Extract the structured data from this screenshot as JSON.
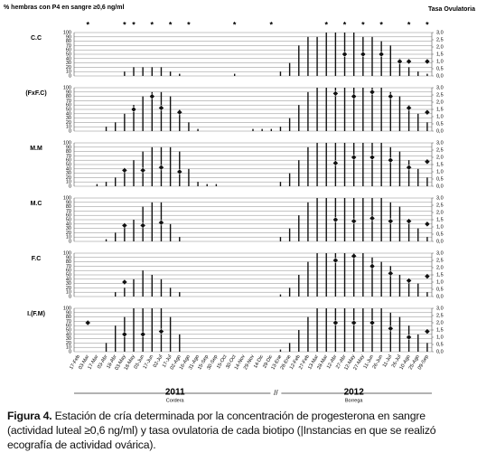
{
  "y_axis_label": "% hembras con P4 en sangre ≥0,6 ng/ml",
  "y2_axis_label": "Tasa Ovulatoria",
  "categories": [
    "17-Feb",
    "03-Mar",
    "17-Mar",
    "03-Abr",
    "18-Abr",
    "03-May",
    "18-May",
    "03-Jun",
    "17-Jun",
    "02-Jul",
    "17-Jul",
    "02-Ago",
    "16-Ago",
    "31-Ago",
    "15-Sep",
    "30-Sep",
    "15-Oct",
    "30-Oct",
    "14-Nov",
    "29-Nov",
    "14-Dic",
    "29-Dic",
    "13-Ene",
    "28-Ene",
    "12-Feb",
    "27-Feb",
    "13-Mar",
    "28-Mar",
    "12-Abr",
    "27-Abr",
    "12-May",
    "27-May",
    "11-Jun",
    "26-Jun",
    "11-Jul",
    "26-Jul",
    "10-Ago",
    "25-Ago",
    "09-Sep"
  ],
  "ylim": [
    0,
    100
  ],
  "yticks": [
    0,
    10,
    20,
    30,
    40,
    50,
    60,
    70,
    80,
    90,
    100
  ],
  "y2lim": [
    0,
    3
  ],
  "y2ticks": [
    {
      "value": 0,
      "label": "0,0"
    },
    {
      "value": 0.5,
      "label": "0,5"
    },
    {
      "value": 1,
      "label": "1,0"
    },
    {
      "value": 1.5,
      "label": "1,5"
    },
    {
      "value": 2,
      "label": "2,0"
    },
    {
      "value": 2.5,
      "label": "2,5"
    },
    {
      "value": 3,
      "label": "3,0"
    }
  ],
  "significance": {
    "label": "*",
    "at": [
      "03-Mar",
      "03-May",
      "18-May",
      "17-Jun",
      "17-Jul",
      "16-Ago",
      "30-Oct",
      "29-Dic",
      "28-Mar",
      "27-Abr",
      "27-May",
      "26-Jun",
      "10-Ago",
      "09-Sep"
    ]
  },
  "axis_break": "//",
  "years": [
    {
      "label": "2011",
      "sublabel": "Cordera"
    },
    {
      "label": "2012",
      "sublabel": "Borrega"
    }
  ],
  "chart_data": [
    {
      "type": "bar",
      "title": "C.C",
      "bar_color": "#111111",
      "dot_color": "#111111",
      "bars": [
        0,
        0,
        0,
        0,
        0,
        10,
        20,
        20,
        20,
        20,
        10,
        5,
        0,
        0,
        0,
        0,
        0,
        5,
        0,
        0,
        0,
        0,
        10,
        30,
        70,
        90,
        90,
        100,
        100,
        100,
        100,
        90,
        90,
        80,
        70,
        40,
        20,
        10,
        5
      ],
      "ovulation": [
        null,
        null,
        null,
        null,
        null,
        null,
        null,
        null,
        null,
        null,
        null,
        null,
        null,
        null,
        null,
        null,
        null,
        null,
        null,
        null,
        null,
        null,
        null,
        null,
        null,
        null,
        null,
        null,
        null,
        1.5,
        null,
        1.5,
        null,
        1.5,
        null,
        1.0,
        1.0,
        null,
        1.0
      ]
    },
    {
      "type": "bar",
      "title": "(FxF.C)",
      "bar_color": "#111111",
      "dot_color": "#111111",
      "bars": [
        0,
        0,
        0,
        10,
        20,
        40,
        60,
        80,
        90,
        90,
        80,
        50,
        20,
        5,
        0,
        0,
        0,
        0,
        0,
        5,
        5,
        5,
        10,
        30,
        60,
        90,
        100,
        100,
        100,
        100,
        100,
        100,
        100,
        100,
        90,
        80,
        60,
        40,
        20
      ],
      "ovulation": [
        null,
        null,
        null,
        null,
        null,
        null,
        1.5,
        null,
        2.4,
        1.6,
        null,
        1.3,
        null,
        null,
        null,
        null,
        null,
        null,
        null,
        null,
        null,
        null,
        null,
        null,
        null,
        null,
        null,
        null,
        2.6,
        null,
        2.4,
        null,
        2.7,
        null,
        2.4,
        null,
        1.6,
        null,
        1.3
      ]
    },
    {
      "type": "bar",
      "title": "M.M",
      "bar_color": "#111111",
      "dot_color": "#111111",
      "bars": [
        0,
        0,
        5,
        10,
        20,
        40,
        60,
        80,
        90,
        90,
        90,
        80,
        40,
        10,
        5,
        5,
        0,
        0,
        0,
        0,
        0,
        0,
        10,
        30,
        60,
        90,
        100,
        100,
        100,
        100,
        100,
        100,
        100,
        100,
        90,
        80,
        60,
        40,
        20
      ],
      "ovulation": [
        null,
        null,
        null,
        null,
        null,
        1.1,
        null,
        1.1,
        null,
        1.3,
        null,
        1.0,
        null,
        null,
        null,
        null,
        null,
        null,
        null,
        null,
        null,
        null,
        null,
        null,
        null,
        null,
        null,
        null,
        1.6,
        null,
        2.0,
        null,
        2.0,
        null,
        1.8,
        null,
        1.3,
        null,
        1.7
      ]
    },
    {
      "type": "bar",
      "title": "M.C",
      "bar_color": "#111111",
      "dot_color": "#111111",
      "bars": [
        0,
        0,
        0,
        5,
        20,
        40,
        50,
        80,
        90,
        90,
        40,
        10,
        0,
        0,
        0,
        0,
        0,
        0,
        0,
        0,
        0,
        0,
        10,
        30,
        60,
        90,
        100,
        100,
        100,
        100,
        100,
        100,
        100,
        100,
        90,
        80,
        50,
        30,
        10
      ],
      "ovulation": [
        null,
        null,
        null,
        null,
        null,
        1.1,
        null,
        1.1,
        null,
        1.3,
        null,
        null,
        null,
        null,
        null,
        null,
        null,
        null,
        null,
        null,
        null,
        null,
        null,
        null,
        null,
        null,
        null,
        null,
        1.5,
        null,
        1.4,
        null,
        1.6,
        null,
        1.4,
        null,
        1.4,
        null,
        1.2
      ]
    },
    {
      "type": "bar",
      "title": "F.C",
      "bar_color": "#111111",
      "dot_color": "#111111",
      "bars": [
        0,
        0,
        0,
        0,
        10,
        20,
        40,
        60,
        50,
        40,
        20,
        10,
        0,
        0,
        0,
        0,
        0,
        0,
        0,
        0,
        0,
        0,
        5,
        20,
        50,
        80,
        100,
        100,
        100,
        100,
        100,
        100,
        90,
        80,
        70,
        50,
        40,
        30,
        10
      ],
      "ovulation": [
        null,
        null,
        null,
        null,
        null,
        1.0,
        null,
        null,
        null,
        null,
        null,
        null,
        null,
        null,
        null,
        null,
        null,
        null,
        null,
        null,
        null,
        null,
        null,
        null,
        null,
        null,
        null,
        null,
        2.5,
        null,
        2.8,
        null,
        2.1,
        null,
        1.6,
        null,
        1.1,
        null,
        1.4
      ]
    },
    {
      "type": "bar",
      "title": "I.(F.M)",
      "bar_color": "#111111",
      "dot_color": "#111111",
      "bars": [
        0,
        0,
        0,
        20,
        60,
        80,
        100,
        100,
        100,
        100,
        80,
        40,
        0,
        0,
        0,
        0,
        0,
        0,
        0,
        0,
        0,
        0,
        5,
        20,
        50,
        80,
        100,
        100,
        100,
        100,
        100,
        100,
        100,
        100,
        90,
        80,
        60,
        40,
        20
      ],
      "ovulation": [
        null,
        2.0,
        null,
        null,
        null,
        1.2,
        null,
        1.2,
        null,
        1.4,
        null,
        null,
        null,
        null,
        null,
        null,
        null,
        null,
        null,
        null,
        null,
        null,
        null,
        null,
        null,
        null,
        null,
        null,
        2.0,
        null,
        2.0,
        null,
        2.0,
        null,
        1.6,
        null,
        1.0,
        null,
        1.4
      ]
    }
  ],
  "caption": {
    "label": "Figura 4.",
    "text": "Estación de cría determinada por la concentración de progesterona en sangre (actividad luteal ≥0,6 ng/ml) y tasa ovulatoria de cada biotipo (|Instancias en que se realizó ecografía de actividad ovárica)."
  }
}
